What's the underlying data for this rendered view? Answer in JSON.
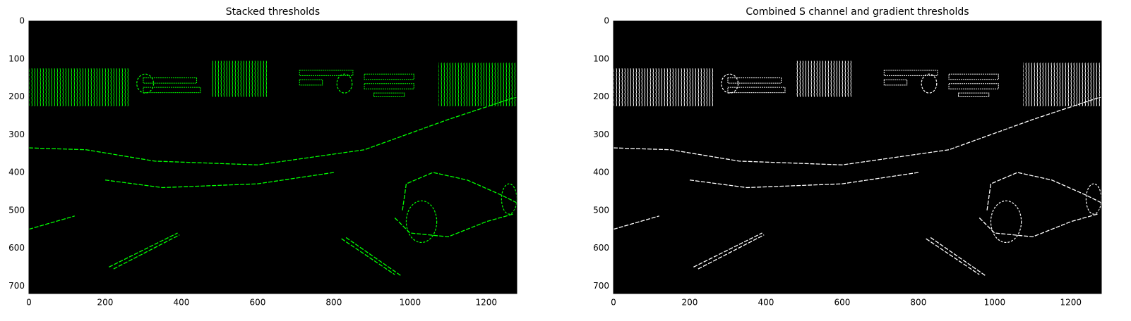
{
  "chart_data": [
    {
      "type": "image",
      "title": "Stacked thresholds",
      "color": "#00ff00",
      "xlim": [
        0,
        1280
      ],
      "ylim": [
        720,
        0
      ],
      "xticks": [
        0,
        200,
        400,
        600,
        800,
        1000,
        1200
      ],
      "yticks": [
        0,
        100,
        200,
        300,
        400,
        500,
        600,
        700
      ]
    },
    {
      "type": "image",
      "title": "Combined S channel and gradient thresholds",
      "color": "#ffffff",
      "xlim": [
        0,
        1280
      ],
      "ylim": [
        720,
        0
      ],
      "xticks": [
        0,
        200,
        400,
        600,
        800,
        1000,
        1200
      ],
      "yticks": [
        0,
        100,
        200,
        300,
        400,
        500,
        600,
        700
      ]
    }
  ]
}
